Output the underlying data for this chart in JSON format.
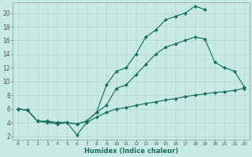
{
  "xlabel": "Humidex (Indice chaleur)",
  "xlim_min": -0.5,
  "xlim_max": 23.5,
  "ylim_min": 1.5,
  "ylim_max": 21.5,
  "yticks": [
    2,
    4,
    6,
    8,
    10,
    12,
    14,
    16,
    18,
    20
  ],
  "xticks": [
    0,
    1,
    2,
    3,
    4,
    5,
    6,
    7,
    8,
    9,
    10,
    11,
    12,
    13,
    14,
    15,
    16,
    17,
    18,
    19,
    20,
    21,
    22,
    23
  ],
  "bg_color": "#c8eae4",
  "line_color": "#1a6e62",
  "grid_color": "#b0d8d0",
  "series": [
    {
      "x": [
        0,
        1,
        2,
        3,
        4,
        5,
        6,
        7,
        8,
        9,
        10,
        11,
        12,
        13,
        14,
        15,
        16,
        17,
        18,
        19,
        20,
        21,
        22,
        23
      ],
      "y": [
        6.0,
        5.8,
        4.2,
        4.2,
        4.0,
        4.0,
        3.8,
        4.2,
        5.5,
        9.5,
        11.5,
        12.0,
        14.0,
        16.5,
        17.5,
        19.0,
        19.5,
        20.0,
        21.0,
        20.5,
        null,
        null,
        null,
        null
      ]
    },
    {
      "x": [
        0,
        1,
        2,
        3,
        4,
        5,
        6,
        7,
        8,
        9,
        10,
        11,
        12,
        13,
        14,
        15,
        16,
        17,
        18,
        19,
        20,
        21,
        22,
        23
      ],
      "y": [
        6.0,
        5.8,
        4.2,
        4.2,
        4.0,
        4.0,
        3.8,
        4.2,
        5.5,
        6.5,
        9.0,
        9.5,
        11.0,
        12.5,
        14.0,
        15.0,
        15.5,
        16.0,
        16.5,
        16.2,
        12.8,
        12.0,
        11.5,
        9.2
      ]
    },
    {
      "x": [
        0,
        1,
        2,
        3,
        4,
        5,
        6,
        7,
        8,
        9,
        10,
        11,
        12,
        13,
        14,
        15,
        16,
        17,
        18,
        19,
        20,
        21,
        22,
        23
      ],
      "y": [
        6.0,
        5.8,
        4.2,
        4.0,
        3.8,
        4.0,
        2.2,
        4.0,
        4.8,
        5.5,
        6.0,
        6.2,
        6.5,
        6.8,
        7.0,
        7.3,
        7.5,
        7.8,
        8.0,
        8.2,
        8.4,
        8.5,
        8.7,
        9.0
      ]
    }
  ]
}
